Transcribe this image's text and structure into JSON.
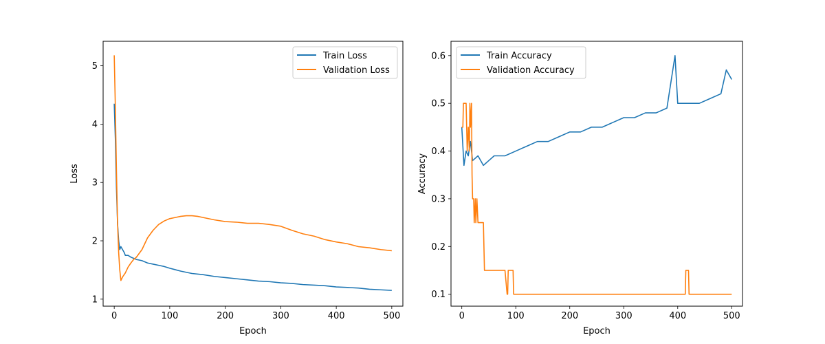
{
  "chart_data": [
    {
      "type": "line",
      "xlabel": "Epoch",
      "ylabel": "Loss",
      "xlim": [
        -20,
        520
      ],
      "ylim": [
        0.88,
        5.42
      ],
      "xticks": [
        0,
        100,
        200,
        300,
        400,
        500
      ],
      "yticks": [
        1,
        2,
        3,
        4,
        5
      ],
      "grid": false,
      "legend": "upper-right",
      "series": [
        {
          "name": "Train Loss",
          "color": "#1f77b4",
          "x": [
            0,
            2,
            4,
            6,
            8,
            10,
            12,
            15,
            18,
            20,
            25,
            30,
            35,
            40,
            45,
            50,
            60,
            70,
            80,
            90,
            100,
            120,
            140,
            160,
            180,
            200,
            220,
            240,
            260,
            280,
            300,
            320,
            340,
            360,
            380,
            400,
            420,
            440,
            460,
            480,
            500
          ],
          "y": [
            4.35,
            3.75,
            2.9,
            2.3,
            2.0,
            1.85,
            1.9,
            1.85,
            1.8,
            1.75,
            1.75,
            1.72,
            1.7,
            1.68,
            1.67,
            1.66,
            1.62,
            1.6,
            1.58,
            1.56,
            1.53,
            1.48,
            1.44,
            1.42,
            1.39,
            1.37,
            1.35,
            1.33,
            1.31,
            1.3,
            1.28,
            1.27,
            1.25,
            1.24,
            1.23,
            1.21,
            1.2,
            1.19,
            1.17,
            1.16,
            1.15
          ]
        },
        {
          "name": "Validation Loss",
          "color": "#ff7f0e",
          "x": [
            0,
            2,
            4,
            6,
            8,
            10,
            12,
            15,
            20,
            25,
            30,
            35,
            40,
            50,
            60,
            70,
            80,
            90,
            100,
            110,
            120,
            130,
            140,
            150,
            160,
            180,
            200,
            220,
            240,
            260,
            280,
            300,
            320,
            340,
            360,
            380,
            400,
            420,
            440,
            460,
            480,
            500
          ],
          "y": [
            5.18,
            4.3,
            3.2,
            2.3,
            1.8,
            1.5,
            1.32,
            1.38,
            1.45,
            1.55,
            1.62,
            1.68,
            1.72,
            1.85,
            2.05,
            2.18,
            2.28,
            2.34,
            2.38,
            2.4,
            2.42,
            2.43,
            2.43,
            2.42,
            2.4,
            2.36,
            2.33,
            2.32,
            2.3,
            2.3,
            2.28,
            2.25,
            2.18,
            2.12,
            2.08,
            2.02,
            1.98,
            1.95,
            1.9,
            1.88,
            1.85,
            1.83
          ]
        }
      ]
    },
    {
      "type": "line",
      "xlabel": "Epoch",
      "ylabel": "Accuracy",
      "xlim": [
        -20,
        520
      ],
      "ylim": [
        0.075,
        0.63
      ],
      "xticks": [
        0,
        100,
        200,
        300,
        400,
        500
      ],
      "yticks": [
        0.1,
        0.2,
        0.3,
        0.4,
        0.5,
        0.6
      ],
      "grid": false,
      "legend": "upper-left",
      "series": [
        {
          "name": "Train Accuracy",
          "color": "#1f77b4",
          "x": [
            0,
            4,
            8,
            12,
            16,
            20,
            30,
            40,
            50,
            60,
            80,
            100,
            120,
            140,
            160,
            180,
            200,
            220,
            240,
            260,
            280,
            300,
            320,
            340,
            360,
            380,
            395,
            400,
            420,
            440,
            460,
            480,
            490,
            500
          ],
          "y": [
            0.45,
            0.37,
            0.4,
            0.39,
            0.42,
            0.38,
            0.39,
            0.37,
            0.38,
            0.39,
            0.39,
            0.4,
            0.41,
            0.42,
            0.42,
            0.43,
            0.44,
            0.44,
            0.45,
            0.45,
            0.46,
            0.47,
            0.47,
            0.48,
            0.48,
            0.49,
            0.6,
            0.5,
            0.5,
            0.5,
            0.51,
            0.52,
            0.57,
            0.55
          ]
        },
        {
          "name": "Validation Accuracy",
          "color": "#ff7f0e",
          "x": [
            0,
            2,
            3,
            8,
            10,
            12,
            14,
            15,
            16,
            18,
            19,
            20,
            22,
            23,
            25,
            26,
            28,
            30,
            35,
            40,
            42,
            44,
            45,
            50,
            80,
            84,
            85,
            86,
            90,
            95,
            96,
            100,
            400,
            414,
            415,
            420,
            421,
            500
          ],
          "y": [
            0.45,
            0.45,
            0.5,
            0.5,
            0.4,
            0.45,
            0.4,
            0.5,
            0.45,
            0.5,
            0.35,
            0.3,
            0.3,
            0.25,
            0.3,
            0.25,
            0.3,
            0.25,
            0.25,
            0.25,
            0.15,
            0.15,
            0.15,
            0.15,
            0.15,
            0.1,
            0.1,
            0.15,
            0.15,
            0.15,
            0.1,
            0.1,
            0.1,
            0.1,
            0.15,
            0.15,
            0.1,
            0.1
          ]
        }
      ]
    }
  ]
}
